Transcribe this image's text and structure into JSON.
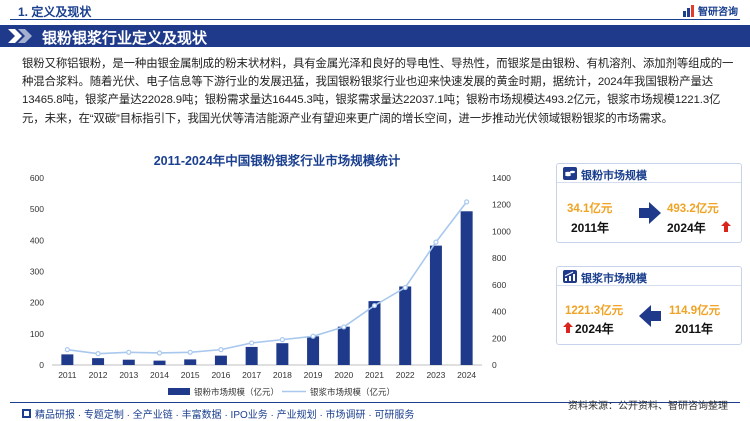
{
  "header": {
    "section_title": "1. 定义及现状",
    "brand": "智研咨询",
    "brand_icon": "zhiyan-logo-icon"
  },
  "banner": {
    "title": "银粉银浆行业定义及现状"
  },
  "intro": {
    "text": "银粉又称铝银粉，是一种由银金属制成的粉末状材料，具有金属光泽和良好的导电性、导热性，而银浆是由银粉、有机溶剂、添加剂等组成的一种混合浆料。随着光伏、电子信息等下游行业的发展迅猛，我国银粉银浆行业也迎来快速发展的黄金时期，据统计，2024年我国银粉产量达13465.8吨，银浆产量达22028.9吨；银粉需求量达16445.3吨，银浆需求量达22037.1吨；银粉市场规模达493.2亿元，银浆市场规模1221.3亿元，未来，在“双碳”目标指引下，我国光伏等清洁能源产业有望迎来更广阔的增长空间，进一步推动光伏领域银粉银浆的市场需求。"
  },
  "chart_data": {
    "type": "bar+line",
    "title": "2011-2024年中国银粉银浆行业市场规模统计",
    "categories": [
      "2011",
      "2012",
      "2013",
      "2014",
      "2015",
      "2016",
      "2017",
      "2018",
      "2019",
      "2020",
      "2021",
      "2022",
      "2023",
      "2024"
    ],
    "series": [
      {
        "name": "银粉市场规模（亿元）",
        "type": "bar",
        "axis": "left",
        "color": "#1f3a8a",
        "values": [
          34.1,
          22,
          17,
          14,
          18,
          30,
          58,
          70,
          92,
          123,
          205,
          252,
          383,
          493.2
        ]
      },
      {
        "name": "银浆市场规模（亿元）",
        "type": "line",
        "axis": "right",
        "color": "#a9c8ee",
        "values": [
          114.9,
          85,
          95,
          90,
          95,
          115,
          165,
          190,
          215,
          285,
          445,
          580,
          920,
          1221.3
        ]
      }
    ],
    "left_axis": {
      "min": 0,
      "max": 600,
      "ticks": [
        "0",
        "100",
        "200",
        "300",
        "400",
        "500",
        "600"
      ]
    },
    "right_axis": {
      "min": 0,
      "max": 1400,
      "ticks": [
        "0",
        "200",
        "400",
        "600",
        "800",
        "1000",
        "1200",
        "1400"
      ]
    },
    "grid": false,
    "legend": "bottom"
  },
  "cards": [
    {
      "title": "银粉市场规模",
      "icon": "coins-icon",
      "start_value": "34.1亿元",
      "start_year": "2011年",
      "end_value": "493.2亿元",
      "end_year": "2024年",
      "arrow_icon": "right-arrow-icon",
      "trend_icon": "up-arrow-icon",
      "trend_color": "#d9251d"
    },
    {
      "title": "银浆市场规模",
      "icon": "growth-chart-icon",
      "end_value": "1221.3亿元",
      "end_year": "2024年",
      "start_value": "114.9亿元",
      "start_year": "2011年",
      "arrow_icon": "left-arrow-icon",
      "trend_icon": "up-arrow-icon",
      "trend_color": "#d9251d"
    }
  ],
  "footer": {
    "left": "精品研报 · 专题定制 · 全产业链 · 丰富数据 · IPO业务 · 产业规划 · 市场调研 · 可研服务",
    "source": "资料来源：公开资料、智研咨询整理",
    "logo_icon": "zhiyan-square-icon"
  },
  "colors": {
    "primary": "#1f3a8a",
    "accent": "#f0a324",
    "line": "#a9c8ee",
    "up": "#d9251d"
  }
}
